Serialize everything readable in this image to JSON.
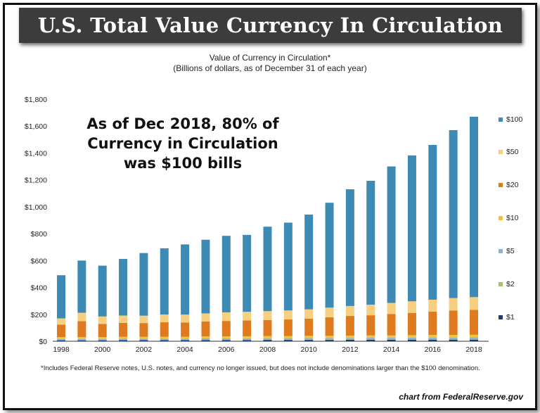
{
  "banner_title": "U.S. Total Value Currency In Circulation",
  "callout": [
    "As of Dec 2018, 80% of",
    "Currency in Circulation",
    "was $100 bills"
  ],
  "footnote": "*Includes Federal Reserve notes, U.S. notes, and currency no longer issued, but does not include denominations larger than the $100 denomination.",
  "credit": "chart from FederalReserve.gov",
  "chart_data": {
    "type": "bar",
    "stacked": true,
    "title": "Value of Currency in Circulation*",
    "subtitle": "(Billions of dollars, as of December 31 of each year)",
    "x": [
      1998,
      1999,
      2000,
      2001,
      2002,
      2003,
      2004,
      2005,
      2006,
      2007,
      2008,
      2009,
      2010,
      2011,
      2012,
      2013,
      2014,
      2015,
      2016,
      2017,
      2018
    ],
    "x_tick_labels": [
      "1998",
      "2000",
      "2002",
      "2004",
      "2006",
      "2008",
      "2010",
      "2012",
      "2014",
      "2016",
      "2018"
    ],
    "ylim": [
      0,
      1800
    ],
    "y_ticks": [
      0,
      200,
      400,
      600,
      800,
      1000,
      1200,
      1400,
      1600,
      1800
    ],
    "y_tick_labels": [
      "$0",
      "$200",
      "$400",
      "$600",
      "$800",
      "$1,000",
      "$1,200",
      "$1,400",
      "$1,600",
      "$1,800"
    ],
    "legend_position": "right",
    "series": [
      {
        "name": "$1",
        "color": "#1f3a6e",
        "values": [
          7,
          7,
          7,
          8,
          8,
          8,
          8,
          9,
          9,
          9,
          10,
          10,
          10,
          10,
          11,
          11,
          11,
          12,
          12,
          12,
          12
        ]
      },
      {
        "name": "$2",
        "color": "#a8c46a",
        "values": [
          1,
          1,
          1,
          1,
          1,
          1,
          1,
          1,
          1,
          2,
          2,
          2,
          2,
          2,
          2,
          2,
          2,
          2,
          2,
          2,
          2
        ]
      },
      {
        "name": "$5",
        "color": "#8fb4cf",
        "values": [
          9,
          9,
          9,
          10,
          10,
          10,
          10,
          11,
          11,
          11,
          11,
          11,
          12,
          12,
          12,
          13,
          13,
          13,
          14,
          14,
          15
        ]
      },
      {
        "name": "$10",
        "color": "#f2c43a",
        "values": [
          14,
          14,
          14,
          14,
          14,
          14,
          14,
          15,
          15,
          15,
          15,
          15,
          16,
          16,
          17,
          17,
          17,
          18,
          18,
          19,
          19
        ]
      },
      {
        "name": "$20",
        "color": "#e07a1f",
        "values": [
          93,
          118,
          98,
          103,
          102,
          108,
          106,
          111,
          115,
          118,
          119,
          124,
          128,
          138,
          146,
          150,
          160,
          166,
          175,
          182,
          185
        ]
      },
      {
        "name": "$50",
        "color": "#f6d080",
        "values": [
          46,
          63,
          55,
          55,
          55,
          58,
          59,
          60,
          64,
          64,
          67,
          67,
          69,
          72,
          74,
          79,
          82,
          86,
          88,
          92,
          95
        ]
      },
      {
        "name": "$100",
        "color": "#3d8bb4",
        "values": [
          321,
          388,
          378,
          421,
          466,
          492,
          522,
          548,
          569,
          572,
          628,
          653,
          705,
          780,
          868,
          921,
          1015,
          1085,
          1151,
          1249,
          1342
        ]
      }
    ]
  }
}
